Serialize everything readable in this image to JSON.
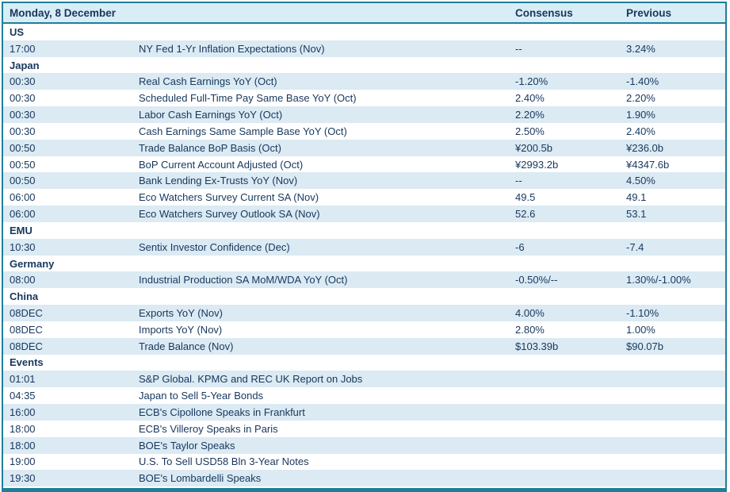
{
  "colors": {
    "accent": "#1e7f99",
    "header_bg": "#d9edf6",
    "stripe_bg": "#dbeaf3",
    "text": "#17375d"
  },
  "header": {
    "title": "Monday, 8 December",
    "consensus_label": "Consensus",
    "previous_label": "Previous"
  },
  "rows": [
    {
      "type": "section",
      "label": "US"
    },
    {
      "type": "data",
      "time": "17:00",
      "event": "NY Fed 1-Yr Inflation Expectations (Nov)",
      "consensus": "--",
      "previous": "3.24%"
    },
    {
      "type": "section",
      "label": "Japan"
    },
    {
      "type": "data",
      "time": "00:30",
      "event": "Real Cash Earnings YoY (Oct)",
      "consensus": "-1.20%",
      "previous": "-1.40%"
    },
    {
      "type": "data",
      "time": "00:30",
      "event": "Scheduled Full-Time Pay Same Base YoY (Oct)",
      "consensus": "2.40%",
      "previous": "2.20%"
    },
    {
      "type": "data",
      "time": "00:30",
      "event": "Labor Cash Earnings YoY (Oct)",
      "consensus": "2.20%",
      "previous": "1.90%"
    },
    {
      "type": "data",
      "time": "00:30",
      "event": "Cash Earnings Same Sample Base YoY (Oct)",
      "consensus": "2.50%",
      "previous": "2.40%"
    },
    {
      "type": "data",
      "time": "00:50",
      "event": "Trade Balance BoP Basis (Oct)",
      "consensus": "¥200.5b",
      "previous": "¥236.0b"
    },
    {
      "type": "data",
      "time": "00:50",
      "event": "BoP Current Account Adjusted (Oct)",
      "consensus": "¥2993.2b",
      "previous": "¥4347.6b"
    },
    {
      "type": "data",
      "time": "00:50",
      "event": "Bank Lending Ex-Trusts YoY (Nov)",
      "consensus": "--",
      "previous": "4.50%"
    },
    {
      "type": "data",
      "time": "06:00",
      "event": "Eco Watchers Survey Current SA (Nov)",
      "consensus": "49.5",
      "previous": "49.1"
    },
    {
      "type": "data",
      "time": "06:00",
      "event": "Eco Watchers Survey Outlook SA (Nov)",
      "consensus": "52.6",
      "previous": "53.1"
    },
    {
      "type": "section",
      "label": "EMU"
    },
    {
      "type": "data",
      "time": "10:30",
      "event": "Sentix Investor Confidence (Dec)",
      "consensus": "-6",
      "previous": "-7.4"
    },
    {
      "type": "section",
      "label": "Germany"
    },
    {
      "type": "data",
      "time": "08:00",
      "event": "Industrial Production SA MoM/WDA YoY (Oct)",
      "consensus": "-0.50%/--",
      "previous": "1.30%/-1.00%"
    },
    {
      "type": "section",
      "label": "China"
    },
    {
      "type": "data",
      "time": "08DEC",
      "event": "Exports YoY (Nov)",
      "consensus": "4.00%",
      "previous": "-1.10%"
    },
    {
      "type": "data",
      "time": "08DEC",
      "event": "Imports YoY (Nov)",
      "consensus": "2.80%",
      "previous": "1.00%"
    },
    {
      "type": "data",
      "time": "08DEC",
      "event": "Trade Balance (Nov)",
      "consensus": "$103.39b",
      "previous": "$90.07b"
    },
    {
      "type": "section",
      "label": "Events"
    },
    {
      "type": "data",
      "time": "01:01",
      "event": "S&P Global. KPMG and REC UK Report on Jobs",
      "consensus": "",
      "previous": ""
    },
    {
      "type": "data",
      "time": "04:35",
      "event": "Japan to Sell 5-Year Bonds",
      "consensus": "",
      "previous": ""
    },
    {
      "type": "data",
      "time": "16:00",
      "event": "ECB's Cipollone Speaks in Frankfurt",
      "consensus": "",
      "previous": ""
    },
    {
      "type": "data",
      "time": "18:00",
      "event": "ECB's Villeroy Speaks in Paris",
      "consensus": "",
      "previous": ""
    },
    {
      "type": "data",
      "time": "18:00",
      "event": "BOE's Taylor Speaks",
      "consensus": "",
      "previous": ""
    },
    {
      "type": "data",
      "time": "19:00",
      "event": "U.S. To Sell USD58 Bln 3-Year Notes",
      "consensus": "",
      "previous": ""
    },
    {
      "type": "data",
      "time": "19:30",
      "event": "BOE's Lombardelli Speaks",
      "consensus": "",
      "previous": ""
    }
  ]
}
